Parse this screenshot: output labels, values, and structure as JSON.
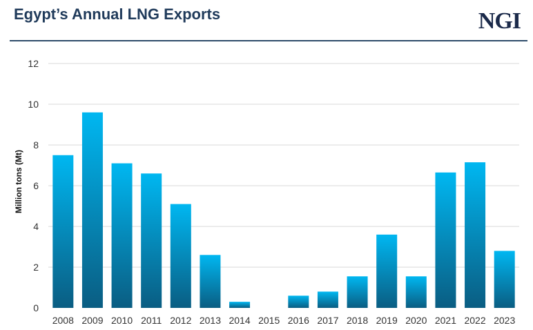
{
  "header": {
    "title": "Egypt’s Annual LNG Exports",
    "logo": "NGI"
  },
  "colors": {
    "title": "#1f3a5a",
    "bar_top": "#00b7f1",
    "bar_bottom": "#0a5d82",
    "grid": "#d9d9d9"
  },
  "chart_data": {
    "type": "bar",
    "title": "Egypt’s Annual LNG Exports",
    "xlabel": "",
    "ylabel": "Million tons (Mt)",
    "ylim": [
      0,
      12
    ],
    "yticks": [
      0,
      2,
      4,
      6,
      8,
      10,
      12
    ],
    "grid": true,
    "categories": [
      "2008",
      "2009",
      "2010",
      "2011",
      "2012",
      "2013",
      "2014",
      "2015",
      "2016",
      "2017",
      "2018",
      "2019",
      "2020",
      "2021",
      "2022",
      "2023"
    ],
    "values": [
      7.5,
      9.6,
      7.1,
      6.6,
      5.1,
      2.6,
      0.3,
      0,
      0.6,
      0.8,
      1.55,
      3.6,
      1.55,
      6.65,
      7.15,
      2.8
    ]
  }
}
